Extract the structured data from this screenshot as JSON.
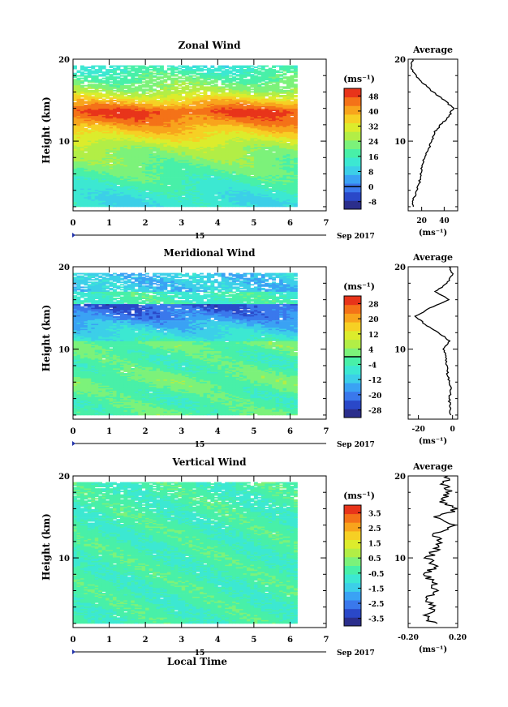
{
  "chart_data": [
    {
      "type": "heatmap",
      "title": "Zonal Wind",
      "ylabel": "Height (km)",
      "xlim": [
        0,
        7
      ],
      "ylim": [
        1.5,
        20
      ],
      "xticks": [
        0,
        1,
        2,
        3,
        4,
        5,
        6,
        7
      ],
      "yticks": [
        10,
        20
      ],
      "data_hours": [
        0,
        6.1
      ],
      "date_label": "15",
      "month_label": "Sep 2017",
      "colorbar": {
        "unit": "(ms⁻¹)",
        "ticks": [
          -8,
          0,
          8,
          16,
          24,
          32,
          40,
          48
        ],
        "range": [
          -12,
          52
        ],
        "zero_line": 0
      },
      "profile": {
        "title": "Average",
        "xlabel": "(ms⁻¹)",
        "xticks": [
          20,
          40
        ],
        "xlim": [
          8,
          52
        ],
        "heights": [
          2,
          3,
          4,
          5,
          6,
          7,
          8,
          9,
          10,
          11,
          12,
          13,
          14,
          15,
          16,
          17,
          18,
          19,
          20
        ],
        "values": [
          12,
          13,
          16,
          18,
          19,
          20,
          22,
          26,
          29,
          31,
          37,
          44,
          48,
          40,
          30,
          22,
          15,
          10,
          12
        ]
      }
    },
    {
      "type": "heatmap",
      "title": "Meridional Wind",
      "ylabel": "Height (km)",
      "xlim": [
        0,
        7
      ],
      "ylim": [
        1.5,
        20
      ],
      "xticks": [
        0,
        1,
        2,
        3,
        4,
        5,
        6,
        7
      ],
      "yticks": [
        10,
        20
      ],
      "data_hours": [
        0,
        6.1
      ],
      "date_label": "15",
      "month_label": "Sep 2017",
      "colorbar": {
        "unit": "(ms⁻¹)",
        "ticks": [
          -28,
          -20,
          -12,
          -4,
          4,
          12,
          20,
          28
        ],
        "range": [
          -32,
          32
        ],
        "zero_line": 0
      },
      "profile": {
        "title": "Average",
        "xlabel": "(ms⁻¹)",
        "xticks": [
          -20,
          0
        ],
        "xlim": [
          -26,
          3
        ],
        "heights": [
          2,
          3,
          4,
          5,
          6,
          7,
          8,
          9,
          10,
          11,
          12,
          13,
          14,
          15,
          16,
          17,
          18,
          19,
          20
        ],
        "values": [
          -1,
          -1.5,
          -2,
          -1,
          -2,
          -3,
          -3.5,
          -4,
          -5,
          -2,
          -8,
          -16,
          -22,
          -13,
          -2,
          -10,
          -3,
          0,
          -2
        ]
      }
    },
    {
      "type": "heatmap",
      "title": "Vertical Wind",
      "ylabel": "Height (km)",
      "xlabel": "Local Time",
      "xlim": [
        0,
        7
      ],
      "ylim": [
        1.5,
        20
      ],
      "xticks": [
        0,
        1,
        2,
        3,
        4,
        5,
        6,
        7
      ],
      "yticks": [
        10,
        20
      ],
      "data_hours": [
        0,
        6.1
      ],
      "date_label": "15",
      "month_label": "Sep 2017",
      "colorbar": {
        "unit": "(ms⁻¹)",
        "ticks": [
          -3.5,
          -2.5,
          -1.5,
          -0.5,
          0.5,
          1.5,
          2.5,
          3.5
        ],
        "range": [
          -4,
          4
        ],
        "zero_line": null
      },
      "profile": {
        "title": "Average",
        "xlabel": "(ms⁻¹)",
        "xticks": [
          -0.2,
          0.2
        ],
        "xlim": [
          -0.2,
          0.2
        ],
        "heights": [
          2,
          3,
          4,
          5,
          6,
          7,
          8,
          9,
          10,
          11,
          12,
          13,
          14,
          15,
          16,
          17,
          18,
          19,
          20
        ],
        "values": [
          0.0,
          -0.04,
          0.01,
          -0.05,
          0.02,
          0.0,
          -0.07,
          0.02,
          -0.04,
          0.03,
          0.05,
          0.0,
          0.18,
          0.04,
          0.2,
          0.06,
          0.14,
          0.08,
          0.12
        ]
      }
    }
  ]
}
